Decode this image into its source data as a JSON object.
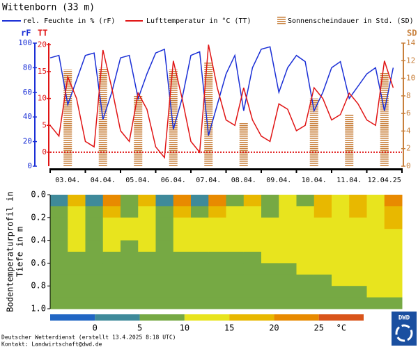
{
  "chart_data": [
    {
      "type": "line",
      "title": "Wittenborn (33 m)",
      "categories": [
        null,
        null,
        "03.04.",
        null,
        null,
        null,
        "04.04.",
        null,
        null,
        null,
        "05.04.",
        null,
        null,
        null,
        "06.04.",
        null,
        null,
        null,
        "07.04.",
        null,
        null,
        null,
        "08.04.",
        null,
        null,
        null,
        "09.04.",
        null,
        null,
        null,
        "10.04.",
        null,
        null,
        null,
        "11.04.",
        null,
        null,
        null,
        "12.04.25",
        null
      ],
      "series": [
        {
          "name": "rel. Feuchte in % (rF)",
          "color": "#1a2fd6",
          "values": [
            88,
            90,
            50,
            70,
            90,
            92,
            38,
            60,
            88,
            90,
            55,
            75,
            92,
            95,
            30,
            55,
            90,
            93,
            25,
            50,
            75,
            90,
            45,
            80,
            95,
            97,
            60,
            80,
            90,
            85,
            45,
            60,
            80,
            85,
            55,
            65,
            75,
            80,
            45,
            80
          ]
        },
        {
          "name": "Lufttemperatur in °C (TT)",
          "color": "#e01414",
          "axis": "y2",
          "values": [
            5,
            3,
            14,
            10,
            2,
            1,
            19,
            12,
            4,
            2,
            11,
            8,
            1,
            -1,
            17,
            10,
            2,
            0,
            20,
            12,
            6,
            5,
            12,
            6,
            3,
            2,
            9,
            8,
            4,
            5,
            12,
            10,
            6,
            7,
            11,
            9,
            6,
            5,
            17,
            12
          ]
        },
        {
          "name": "Sonnenscheindauer in Std. (SD)",
          "color": "#c8803c",
          "axis": "y3",
          "kind": "bar",
          "values": [
            null,
            null,
            11,
            null,
            null,
            null,
            11.2,
            null,
            null,
            null,
            8.1,
            null,
            null,
            null,
            11,
            null,
            null,
            null,
            11.8,
            null,
            null,
            null,
            4.9,
            null,
            null,
            null,
            null,
            null,
            null,
            null,
            7.7,
            null,
            null,
            null,
            5.9,
            null,
            null,
            null,
            10.6,
            null
          ]
        }
      ],
      "ylabel": "rF",
      "ylim": [
        0,
        100
      ],
      "yticks": [
        0,
        20,
        40,
        60,
        80,
        100
      ],
      "y2label": "TT",
      "y2lim": [
        -2.6,
        20.3
      ],
      "y2ticks": [
        0,
        5,
        10,
        15,
        20
      ],
      "y3label": "SD",
      "y3lim": [
        0,
        14
      ],
      "y3ticks": [
        0,
        2,
        4,
        6,
        8,
        10,
        12,
        14
      ]
    },
    {
      "type": "heatmap",
      "ylabel": [
        "Bodentemperaturprofil in",
        "Tiefe in m"
      ],
      "ylim": [
        0,
        1
      ],
      "yticks": [
        {
          "value": 0,
          "label": "0.0"
        },
        {
          "value": 0.2,
          "label": "0.2"
        },
        {
          "value": 0.4,
          "label": "0.4"
        },
        {
          "value": 0.6,
          "label": "0.6"
        },
        {
          "value": 0.8,
          "label": "0.8"
        },
        {
          "value": 1,
          "label": "1.0"
        }
      ],
      "depth_bins": [
        0,
        0.1,
        0.2,
        0.3,
        0.4,
        0.5,
        0.6,
        0.7,
        0.8,
        0.9,
        1.0
      ],
      "values": [
        [
          4,
          8,
          9,
          9,
          9,
          8.5,
          8,
          8,
          8,
          8
        ],
        [
          17,
          14,
          12,
          11,
          10.5,
          9,
          8.5,
          8,
          8,
          8
        ],
        [
          3,
          7,
          9,
          9.5,
          9.5,
          9,
          8.5,
          8,
          8,
          8
        ],
        [
          21,
          16,
          13,
          11.5,
          10.5,
          9.5,
          9,
          8.5,
          8,
          8
        ],
        [
          6,
          9,
          10,
          10,
          9.5,
          9,
          8.5,
          8,
          8,
          8
        ],
        [
          16,
          14,
          12,
          11,
          10,
          9.5,
          9,
          8.5,
          8,
          8
        ],
        [
          3,
          7,
          9,
          9.5,
          9.5,
          9,
          8.5,
          8,
          8,
          8
        ],
        [
          20,
          16,
          13,
          11.5,
          10.5,
          9.5,
          9,
          8.5,
          8,
          8
        ],
        [
          4,
          8,
          10,
          10,
          10,
          9.5,
          9,
          8.5,
          8,
          8
        ],
        [
          22,
          17,
          13.5,
          12,
          10.5,
          9.5,
          9,
          8.5,
          8,
          8
        ],
        [
          7,
          10,
          11,
          11,
          10.5,
          9.5,
          9,
          8.5,
          8,
          8
        ],
        [
          16,
          14,
          12.5,
          11.5,
          10.5,
          9.5,
          9,
          8.5,
          8,
          8
        ],
        [
          6,
          9,
          11,
          11,
          10.5,
          10,
          9,
          8.5,
          8,
          8
        ],
        [
          13,
          12,
          11.5,
          11,
          10.5,
          10,
          9,
          8.5,
          8,
          8
        ],
        [
          9,
          11,
          12,
          12,
          11.5,
          11,
          10,
          9,
          8.5,
          8
        ],
        [
          19,
          16,
          14,
          13,
          12.5,
          11.5,
          10.5,
          9.5,
          9,
          8.5
        ],
        [
          10,
          12,
          12.5,
          12.5,
          12,
          11.5,
          10.5,
          10,
          9,
          8.5
        ],
        [
          17,
          15,
          14,
          13,
          12.5,
          12,
          11,
          10.5,
          9.5,
          9
        ],
        [
          10,
          12,
          13,
          13,
          12.5,
          12,
          11.5,
          10.5,
          10,
          9
        ],
        [
          22,
          18,
          15,
          14,
          13,
          12.5,
          12,
          11,
          10.5,
          9.5
        ]
      ],
      "colorbar": {
        "bins": [
          -5,
          0,
          5,
          10,
          15,
          20,
          25,
          30
        ],
        "colors": [
          "#2166c4",
          "#3f8a9a",
          "#76a944",
          "#e8e41e",
          "#e8b800",
          "#e88a00",
          "#d9541a"
        ],
        "ticks": [
          0,
          5,
          10,
          15,
          20,
          25
        ],
        "unit": "°C"
      }
    }
  ],
  "footer": [
    "Deutscher Wetterdienst (erstellt 13.4.2025 8:18 UTC)",
    "Kontakt: Landwirtschaft@dwd.de"
  ],
  "logo": "DWD"
}
